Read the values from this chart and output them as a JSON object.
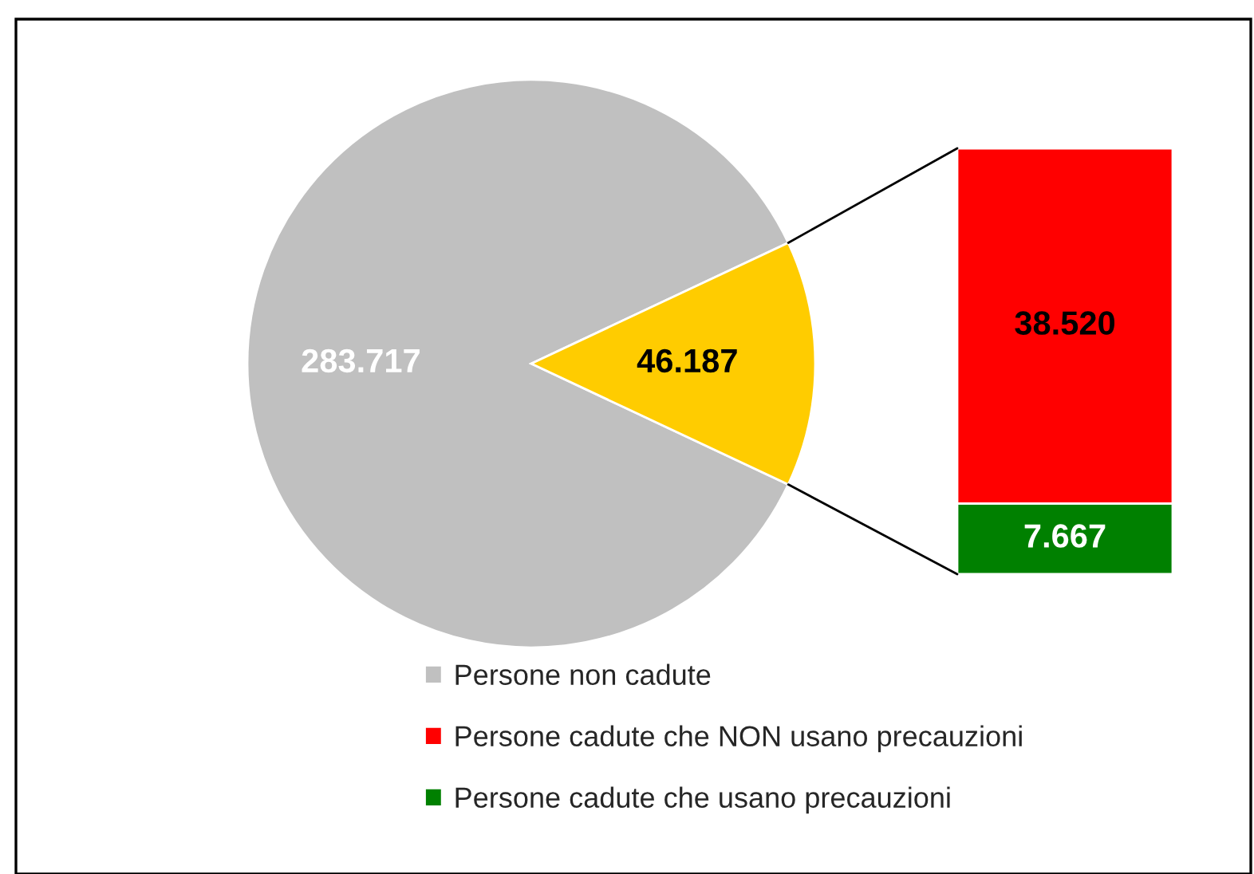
{
  "chart_data": [
    {
      "type": "pie",
      "categories": [
        "Persone non cadute",
        null
      ],
      "values": [
        283717,
        46187
      ],
      "colors": [
        "#c0c0c0",
        "#ffcc00"
      ],
      "value_labels": [
        "283.717",
        "46.187"
      ],
      "legend": "bottom"
    },
    {
      "type": "bar",
      "stacked": true,
      "categories": [
        null
      ],
      "series": [
        {
          "name": "Persone cadute che usano precauzioni",
          "color": "#008000",
          "values": [
            7667
          ],
          "value_labels": [
            "7.667"
          ]
        },
        {
          "name": "Persone cadute che NON usano precauzioni",
          "color": "#ff0000",
          "values": [
            38520
          ],
          "value_labels": [
            "38.520"
          ]
        }
      ],
      "legend": "bottom"
    }
  ]
}
